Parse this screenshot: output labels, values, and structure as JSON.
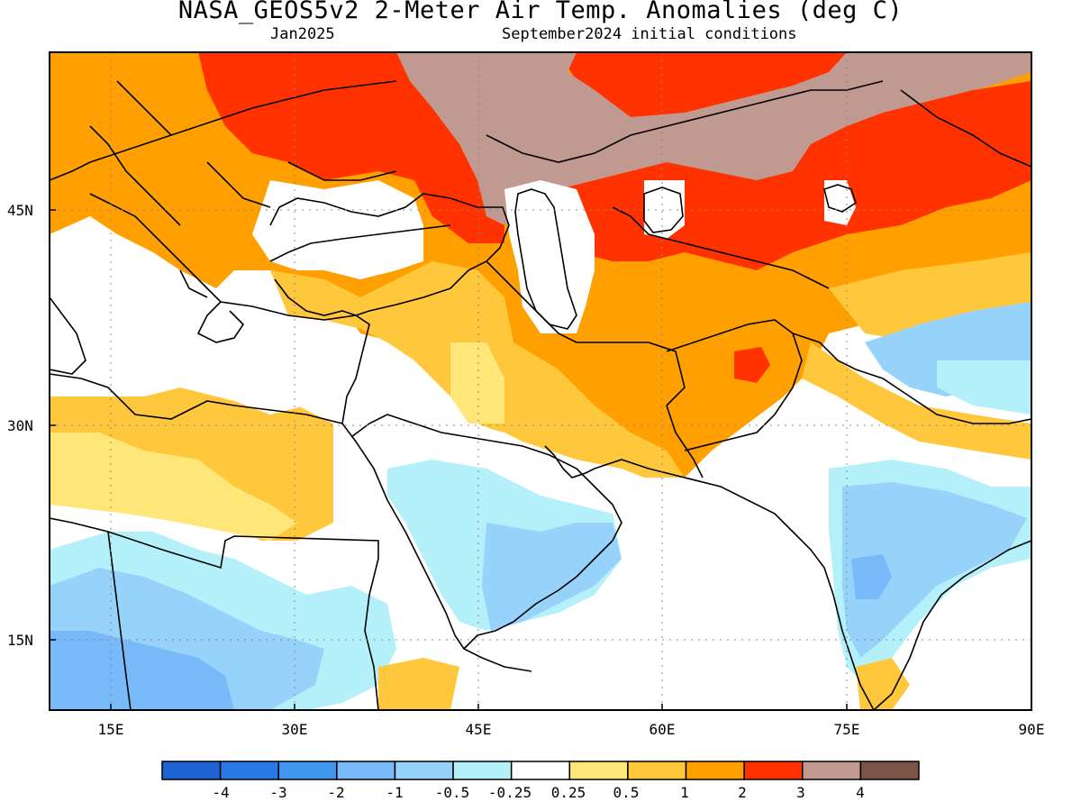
{
  "header": {
    "title": "NASA_GEOS5v2 2-Meter Air Temp. Anomalies (deg C)",
    "valid_month": "Jan2025",
    "initial_conditions": "September2024 initial conditions"
  },
  "map": {
    "region_lon_range": [
      10,
      90
    ],
    "region_lat_range": [
      10,
      58
    ],
    "lat_labels": [
      "45N",
      "30N",
      "15N"
    ],
    "lon_labels": [
      "15E",
      "30E",
      "45E",
      "60E",
      "75E",
      "90E"
    ]
  },
  "colorbar": {
    "colors": [
      "#1e64d2",
      "#2878e6",
      "#4196f0",
      "#78b9fa",
      "#96d2fa",
      "#b4f0fa",
      "#ffffff",
      "#ffe678",
      "#ffc83c",
      "#ffa000",
      "#ff3200",
      "#c09a91",
      "#7b5446"
    ],
    "labels": [
      "-4",
      "-3",
      "-2",
      "-1",
      "-0.5",
      "-0.25",
      "0.25",
      "0.5",
      "1",
      "2",
      "3",
      "4"
    ]
  }
}
